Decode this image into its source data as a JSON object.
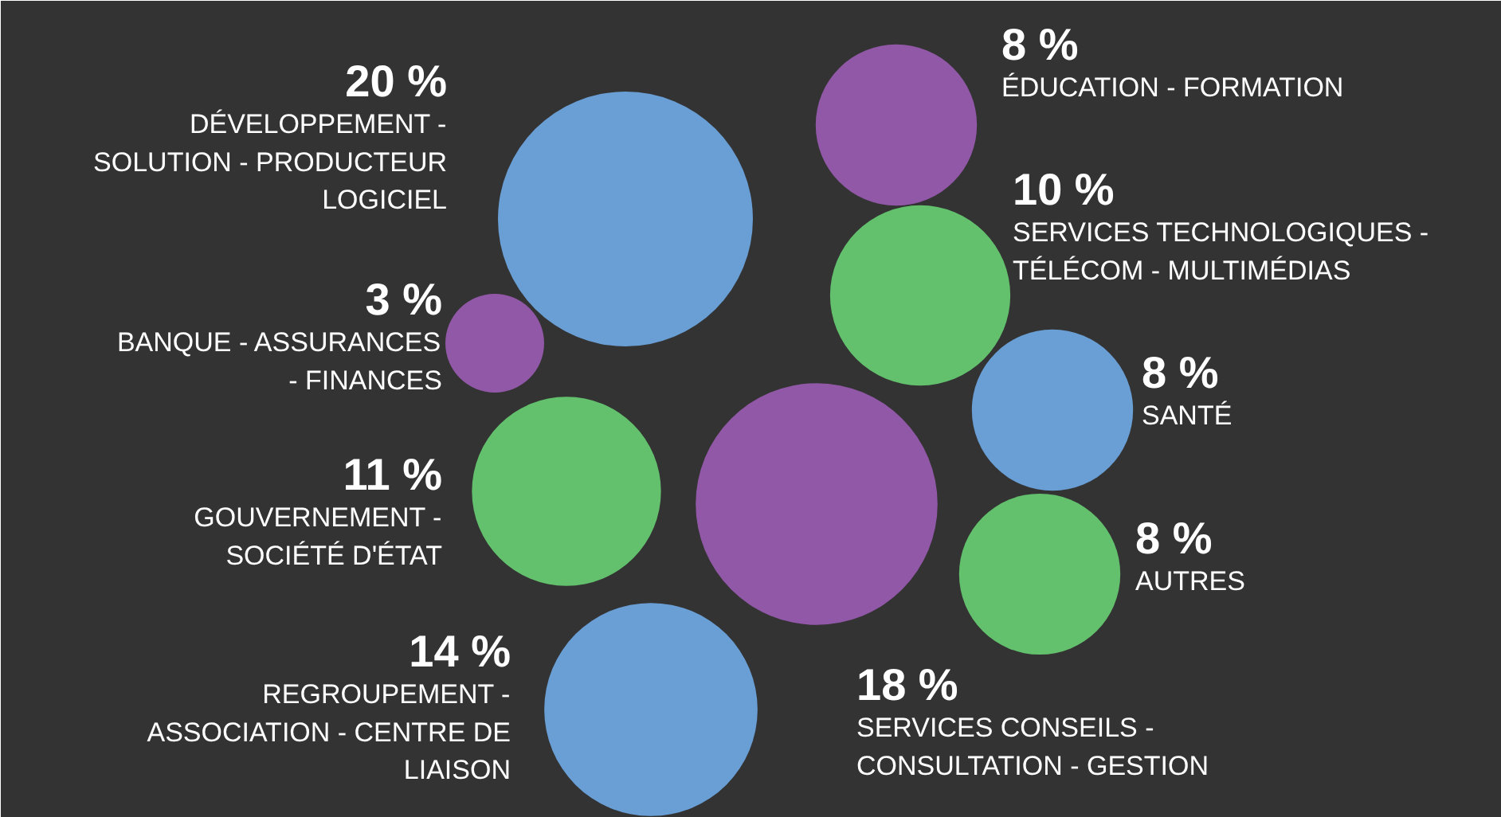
{
  "chart_data": {
    "type": "other",
    "categories": [
      "DÉVELOPPEMENT -\nSOLUTION - PRODUCTEUR\nLOGICIEL",
      "ÉDUCATION - FORMATION",
      "SERVICES TECHNOLOGIQUES -\nTÉLÉCOM - MULTIMÉDIAS",
      "BANQUE - ASSURANCES\n- FINANCES",
      "SANTÉ",
      "GOUVERNEMENT -\nSOCIÉTÉ D'ÉTAT",
      "SERVICES CONSEILS -\nCONSULTATION - GESTION",
      "AUTRES",
      "REGROUPEMENT -\nASSOCIATION - CENTRE DE\nLIAISON"
    ],
    "values": [
      20,
      8,
      10,
      3,
      8,
      11,
      18,
      8,
      14
    ],
    "value_labels": [
      "20 %",
      "8 %",
      "10 %",
      "3 %",
      "8 %",
      "11 %",
      "18 %",
      "8 %",
      "14 %"
    ],
    "colors": [
      "#6a9fd6",
      "#9258a8",
      "#63c06d",
      "#9258a8",
      "#6a9fd6",
      "#63c06d",
      "#9258a8",
      "#63c06d",
      "#6a9fd6"
    ]
  }
}
